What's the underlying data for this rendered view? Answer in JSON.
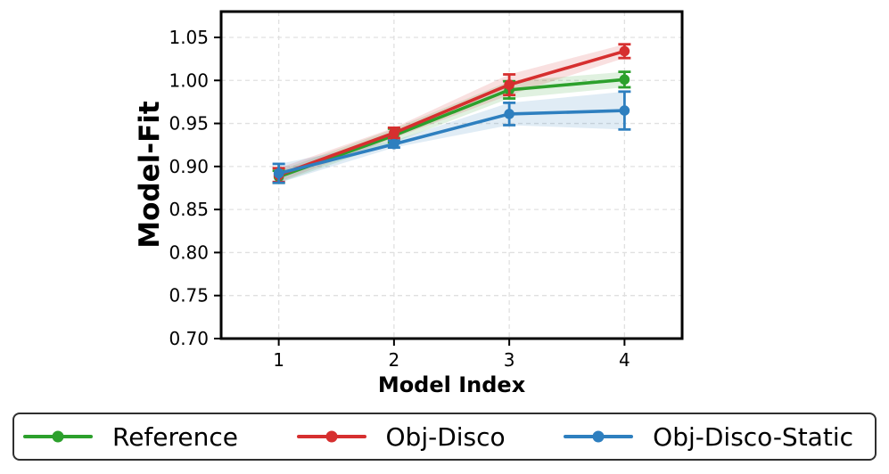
{
  "chart_data": {
    "type": "line",
    "title": "",
    "xlabel": "Model Index",
    "ylabel": "Model-Fit",
    "x": [
      1,
      2,
      3,
      4
    ],
    "xtick_labels": [
      "1",
      "2",
      "3",
      "4"
    ],
    "yticks": [
      0.7,
      0.75,
      0.8,
      0.85,
      0.9,
      0.95,
      1.0,
      1.05
    ],
    "ytick_labels": [
      "0.70",
      "0.75",
      "0.80",
      "0.85",
      "0.90",
      "0.95",
      "1.00",
      "1.05"
    ],
    "xlim": [
      0.5,
      4.5
    ],
    "ylim": [
      0.7,
      1.08
    ],
    "grid": true,
    "grid_style": "dashed",
    "error_bars": true,
    "confidence_bands": true,
    "legend_position": "bottom",
    "series": [
      {
        "name": "Reference",
        "color": "#2ca02c",
        "values": [
          0.888,
          0.936,
          0.989,
          1.001
        ],
        "error": [
          0.007,
          0.008,
          0.01,
          0.009
        ]
      },
      {
        "name": "Obj-Disco",
        "color": "#d62f2f",
        "values": [
          0.89,
          0.939,
          0.995,
          1.034
        ],
        "error": [
          0.008,
          0.006,
          0.012,
          0.008
        ]
      },
      {
        "name": "Obj-Disco-Static",
        "color": "#2e7fbf",
        "values": [
          0.892,
          0.926,
          0.961,
          0.965
        ],
        "error": [
          0.011,
          0.004,
          0.013,
          0.022
        ]
      }
    ]
  },
  "legend": {
    "items": [
      {
        "label": "Reference",
        "color": "#2ca02c"
      },
      {
        "label": "Obj-Disco",
        "color": "#d62f2f"
      },
      {
        "label": "Obj-Disco-Static",
        "color": "#2e7fbf"
      }
    ]
  }
}
